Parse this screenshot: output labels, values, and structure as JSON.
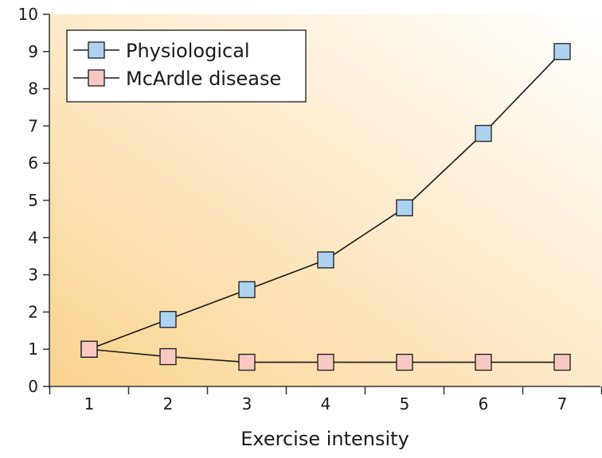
{
  "chart_data": {
    "type": "line",
    "title": "",
    "xlabel": "Exercise intensity",
    "ylabel": "",
    "x": [
      1,
      2,
      3,
      4,
      5,
      6,
      7
    ],
    "xlim": [
      0.5,
      7.5
    ],
    "ylim": [
      0,
      10
    ],
    "yticks": [
      0,
      1,
      2,
      3,
      4,
      5,
      6,
      7,
      8,
      9,
      10
    ],
    "grid": false,
    "legend_position": "top-left",
    "series": [
      {
        "name": "Physiological",
        "values": [
          1.0,
          1.8,
          2.6,
          3.4,
          4.8,
          6.8,
          9.0
        ],
        "marker_color": "#aed3f1"
      },
      {
        "name": "McArdle disease",
        "values": [
          1.0,
          0.8,
          0.65,
          0.65,
          0.65,
          0.65,
          0.65
        ],
        "marker_color": "#f7c9c2"
      }
    ],
    "background_gradient": [
      "#f9d38e",
      "#ffffff"
    ]
  }
}
